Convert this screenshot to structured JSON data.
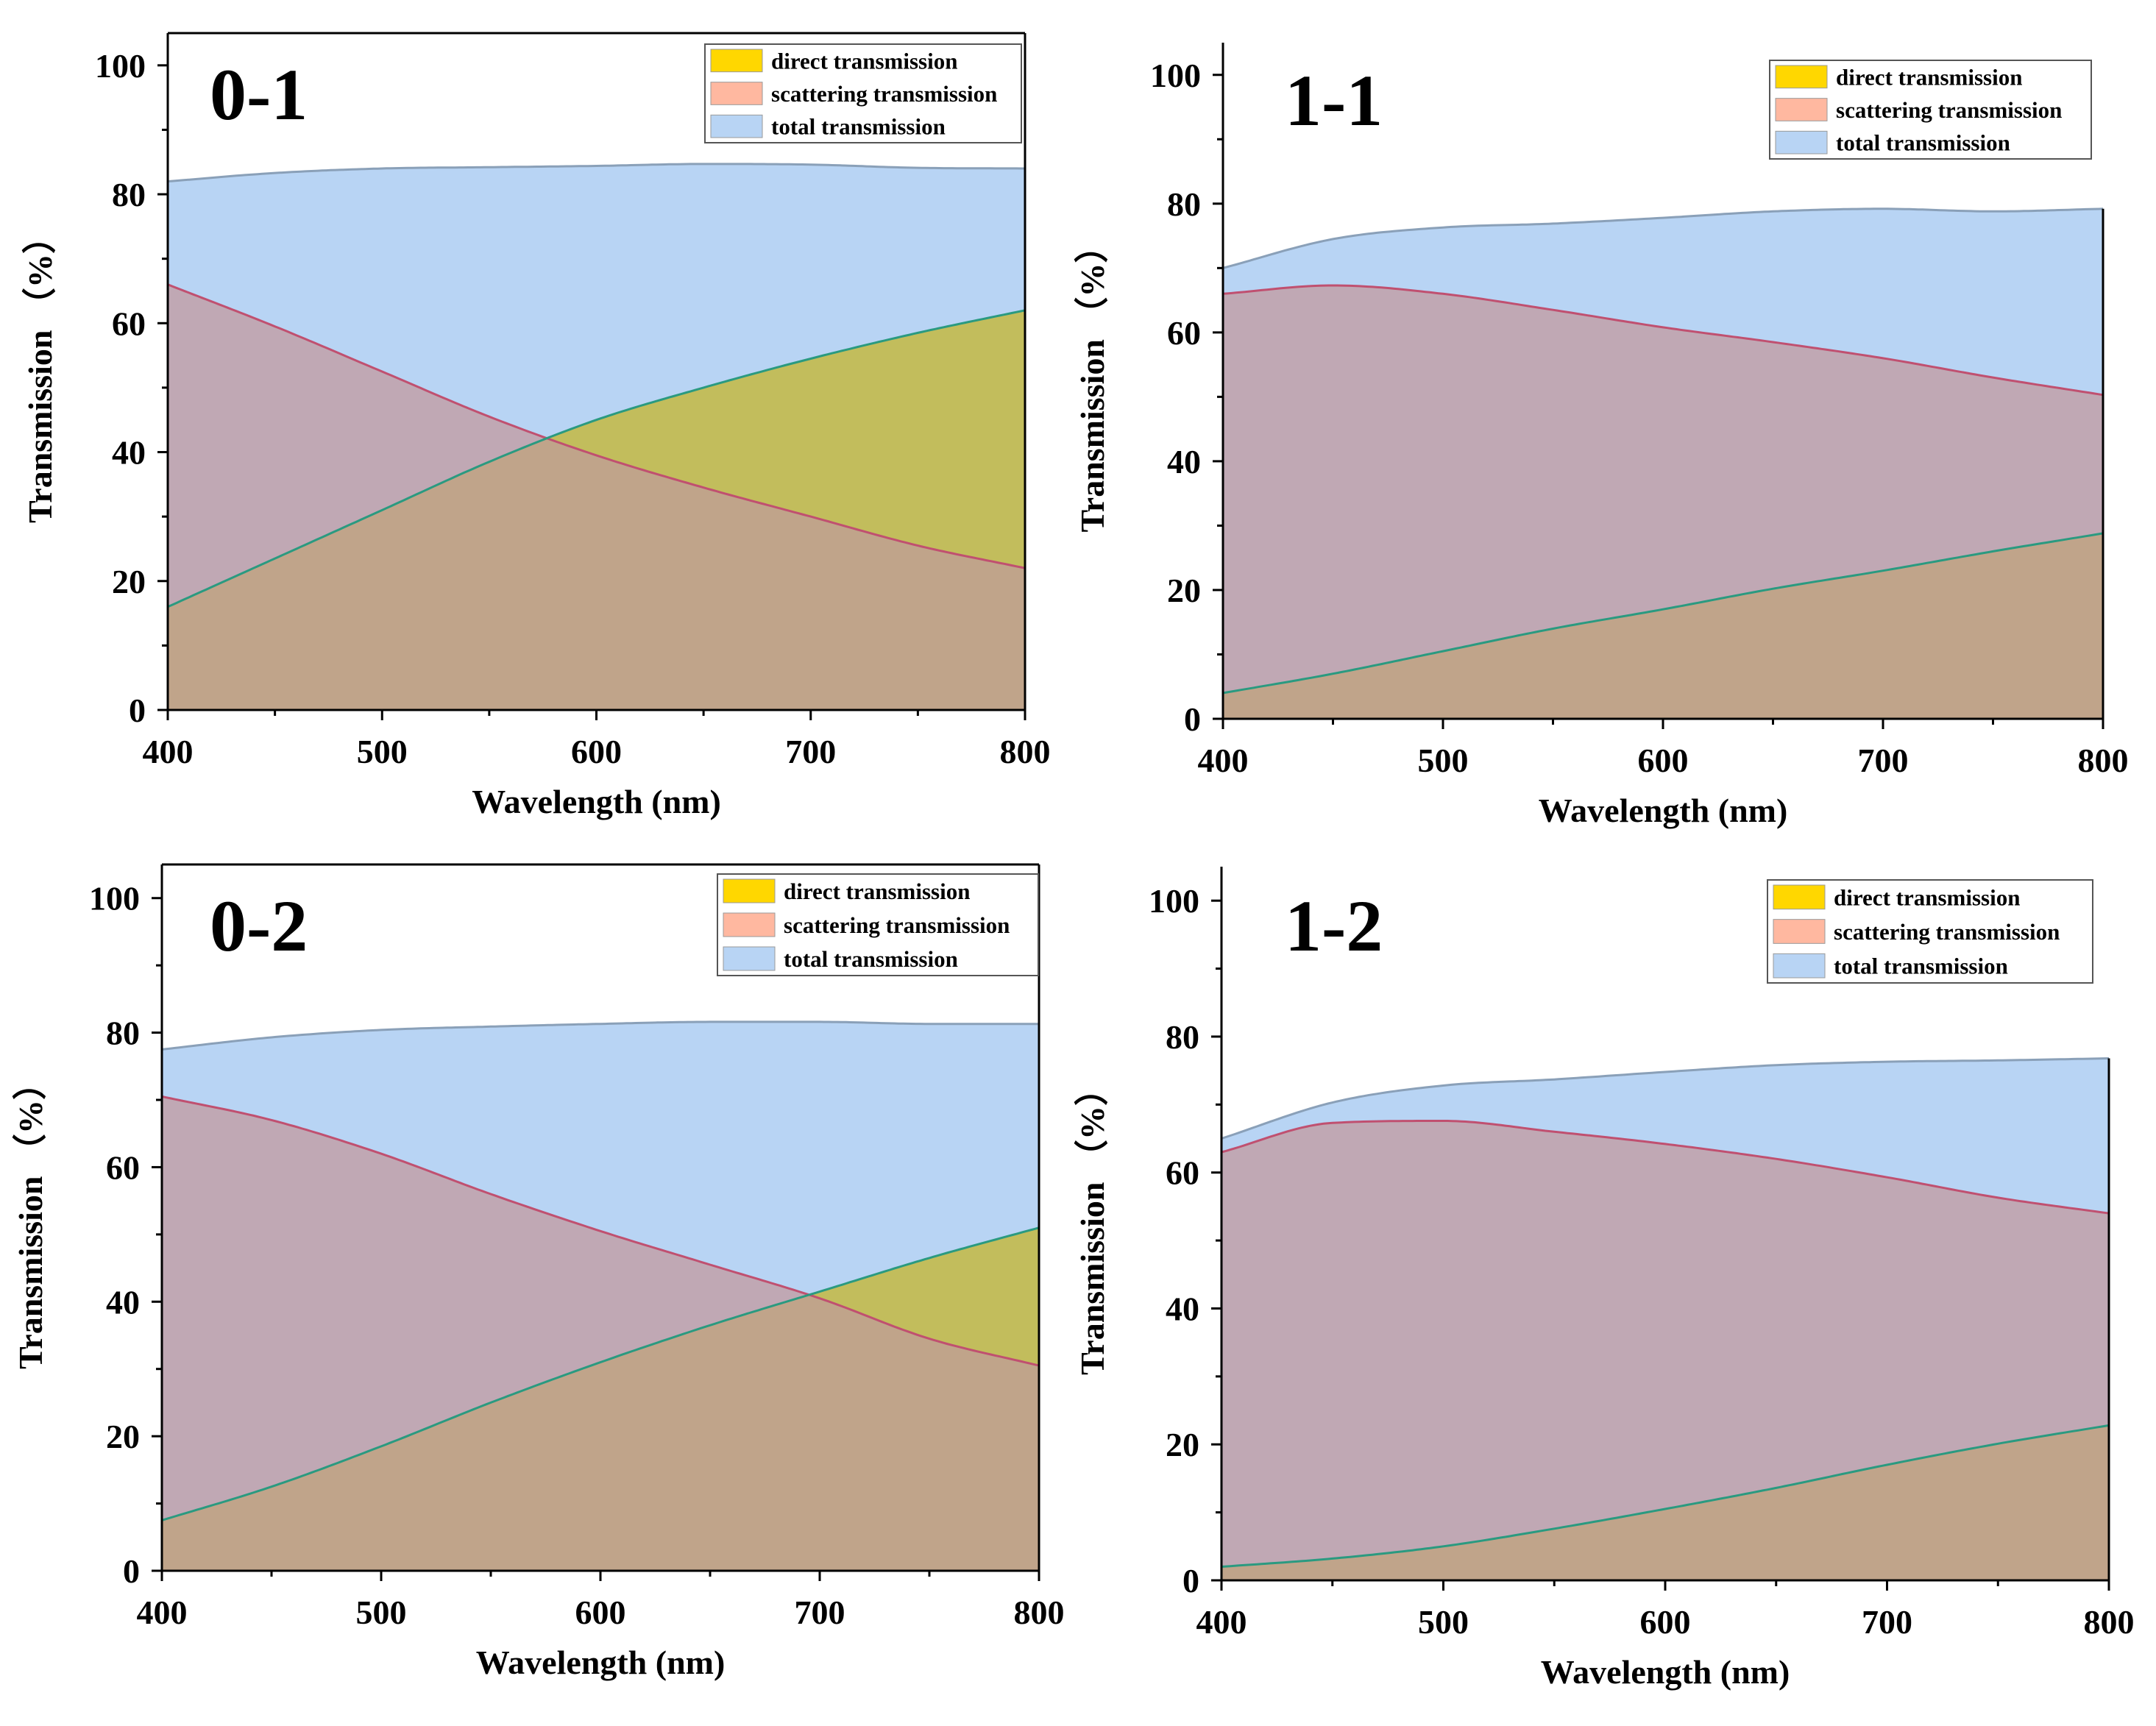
{
  "colors": {
    "direct": "#ffd700",
    "scattering": "#ffb8a0",
    "total": "#b8d4f4",
    "total_curve": "#8aa0b8",
    "scattering_curve": "#c05070",
    "direct_curve": "#2a9a80",
    "direct_area_visible": "#c2bd5c",
    "overlap_area": "#c0a48a"
  },
  "chart_data": [
    {
      "type": "area",
      "label": "0-1",
      "xlabel": "Wavelength (nm)",
      "ylabel": "Transmission （%）",
      "xlim": [
        400,
        800
      ],
      "ylim": [
        0,
        105
      ],
      "xticks": [
        "400",
        "500",
        "600",
        "700",
        "800"
      ],
      "yticks": [
        "0",
        "20",
        "40",
        "60",
        "80",
        "100"
      ],
      "legend": [
        "direct transmission",
        "scattering transmission",
        "total transmission"
      ],
      "x": [
        400,
        450,
        500,
        550,
        600,
        650,
        700,
        750,
        800
      ],
      "series": [
        {
          "name": "total transmission",
          "values": [
            82,
            83.3,
            84,
            84.2,
            84.4,
            84.7,
            84.6,
            84.1,
            84
          ]
        },
        {
          "name": "scattering transmission",
          "values": [
            66,
            59.5,
            52.5,
            45.5,
            39.5,
            34.5,
            30,
            25.5,
            22
          ]
        },
        {
          "name": "direct transmission",
          "values": [
            16,
            23.5,
            31,
            38.5,
            45,
            50,
            54.5,
            58.5,
            62
          ]
        }
      ]
    },
    {
      "type": "area",
      "label": "1-1",
      "xlabel": "Wavelength (nm)",
      "ylabel": "Transmission （%）",
      "xlim": [
        400,
        800
      ],
      "ylim": [
        0,
        105
      ],
      "xticks": [
        "400",
        "500",
        "600",
        "700",
        "800"
      ],
      "yticks": [
        "0",
        "20",
        "40",
        "60",
        "80",
        "100"
      ],
      "legend": [
        "direct transmission",
        "scattering transmission",
        "total transmission"
      ],
      "x": [
        400,
        450,
        500,
        550,
        600,
        650,
        700,
        750,
        800
      ],
      "series": [
        {
          "name": "total transmission",
          "values": [
            70,
            74.5,
            76.3,
            76.9,
            77.8,
            78.8,
            79.2,
            78.8,
            79.2
          ]
        },
        {
          "name": "scattering transmission",
          "values": [
            66,
            67.3,
            66,
            63.5,
            60.8,
            58.5,
            56,
            53,
            50.3
          ]
        },
        {
          "name": "direct transmission",
          "values": [
            4,
            7,
            10.5,
            14,
            17,
            20.2,
            23,
            26,
            28.8
          ]
        }
      ]
    },
    {
      "type": "area",
      "label": "0-2",
      "xlabel": "Wavelength (nm)",
      "ylabel": "Transmission （%）",
      "xlim": [
        400,
        800
      ],
      "ylim": [
        0,
        105
      ],
      "xticks": [
        "400",
        "500",
        "600",
        "700",
        "800"
      ],
      "yticks": [
        "0",
        "20",
        "40",
        "60",
        "80",
        "100"
      ],
      "legend": [
        "direct transmission",
        "scattering transmission",
        "total transmission"
      ],
      "x": [
        400,
        450,
        500,
        550,
        600,
        650,
        700,
        750,
        800
      ],
      "series": [
        {
          "name": "total transmission",
          "values": [
            77.5,
            79.3,
            80.4,
            80.9,
            81.3,
            81.6,
            81.6,
            81.3,
            81.3
          ]
        },
        {
          "name": "scattering transmission",
          "values": [
            70.5,
            67,
            62,
            56,
            50.5,
            45.5,
            40.5,
            34.5,
            30.5
          ]
        },
        {
          "name": "direct transmission",
          "values": [
            7.5,
            12.5,
            18.5,
            25,
            31,
            36.5,
            41.5,
            46.5,
            51
          ]
        }
      ]
    },
    {
      "type": "area",
      "label": "1-2",
      "xlabel": "Wavelength (nm)",
      "ylabel": "Transmission （%）",
      "xlim": [
        400,
        800
      ],
      "ylim": [
        0,
        105
      ],
      "xticks": [
        "400",
        "500",
        "600",
        "700",
        "800"
      ],
      "yticks": [
        "0",
        "20",
        "40",
        "60",
        "80",
        "100"
      ],
      "legend": [
        "direct transmission",
        "scattering transmission",
        "total transmission"
      ],
      "x": [
        400,
        450,
        500,
        550,
        600,
        650,
        700,
        750,
        800
      ],
      "series": [
        {
          "name": "total transmission",
          "values": [
            65,
            70.3,
            72.8,
            73.7,
            74.8,
            75.8,
            76.3,
            76.5,
            76.8
          ]
        },
        {
          "name": "scattering transmission",
          "values": [
            63,
            67.3,
            67.6,
            66,
            64.2,
            62,
            59.3,
            56.3,
            54
          ]
        },
        {
          "name": "direct transmission",
          "values": [
            2,
            3.2,
            5,
            7.6,
            10.5,
            13.6,
            17,
            20.1,
            22.8
          ]
        }
      ]
    }
  ]
}
